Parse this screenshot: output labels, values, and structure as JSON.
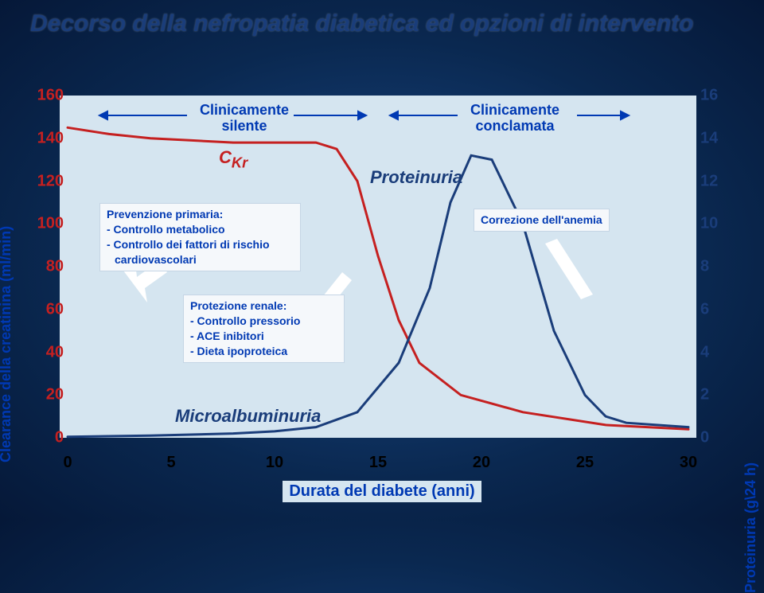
{
  "title": "Decorso della nefropatia diabetica ed opzioni di intervento",
  "chart": {
    "type": "line",
    "background_color": "#d5e5f0",
    "slide_bg_center": "#1a4a8a",
    "slide_bg_edge": "#051838",
    "x_axis": {
      "label": "Durata del diabete (anni)",
      "ticks": [
        0,
        5,
        10,
        15,
        20,
        25,
        30
      ],
      "min": 0,
      "max": 30
    },
    "y_axis_left": {
      "label": "Clearance della creatinina (ml/min)",
      "ticks": [
        0,
        20,
        40,
        60,
        80,
        100,
        120,
        140,
        160
      ],
      "min": 0,
      "max": 160,
      "color": "#c52020"
    },
    "y_axis_right": {
      "label": "Proteinuria (g\\24 h)",
      "ticks": [
        0,
        2,
        4,
        6,
        8,
        10,
        12,
        14,
        16
      ],
      "min": 0,
      "max": 16,
      "color": "#1a3d7a"
    },
    "series": {
      "ckr": {
        "label": "C",
        "sub": "Kr",
        "color": "#c52020",
        "line_width": 3,
        "points": [
          [
            0,
            145
          ],
          [
            2,
            142
          ],
          [
            4,
            140
          ],
          [
            6,
            139
          ],
          [
            8,
            138
          ],
          [
            10,
            138
          ],
          [
            12,
            138
          ],
          [
            13,
            135
          ],
          [
            14,
            120
          ],
          [
            15,
            85
          ],
          [
            16,
            55
          ],
          [
            17,
            35
          ],
          [
            19,
            20
          ],
          [
            22,
            12
          ],
          [
            26,
            6
          ],
          [
            30,
            4
          ]
        ]
      },
      "proteinuria": {
        "label": "Proteinuria",
        "color": "#1a3d7a",
        "line_width": 3,
        "points": [
          [
            0,
            0.05
          ],
          [
            4,
            0.1
          ],
          [
            8,
            0.2
          ],
          [
            10,
            0.3
          ],
          [
            12,
            0.5
          ],
          [
            14,
            1.2
          ],
          [
            16,
            3.5
          ],
          [
            17.5,
            7
          ],
          [
            18.5,
            11
          ],
          [
            19.5,
            13.2
          ],
          [
            20.5,
            13
          ],
          [
            22,
            10
          ],
          [
            23.5,
            5
          ],
          [
            25,
            2
          ],
          [
            26,
            1
          ],
          [
            27,
            0.7
          ],
          [
            30,
            0.5
          ]
        ]
      },
      "microalbuminuria": {
        "label": "Microalbuminuria",
        "color": "#1a3d7a"
      }
    },
    "phases": {
      "silent": {
        "text1": "Clinicamente",
        "text2": "silente"
      },
      "overt": {
        "text1": "Clinicamente",
        "text2": "conclamata"
      }
    },
    "boxes": {
      "prevention": {
        "title": "Prevenzione primaria:",
        "line1": "- Controllo metabolico",
        "line2": "- Controllo dei fattori di rischio",
        "line3": "  cardiovascolari"
      },
      "renal": {
        "title": "Protezione renale:",
        "line1": "- Controllo pressorio",
        "line2": "- ACE inibitori",
        "line3": "- Dieta ipoproteica"
      },
      "anemia": {
        "text": "Correzione dell'anemia"
      }
    },
    "arrow_color": "#0039b3",
    "white_arrow_color": "#ffffff"
  }
}
